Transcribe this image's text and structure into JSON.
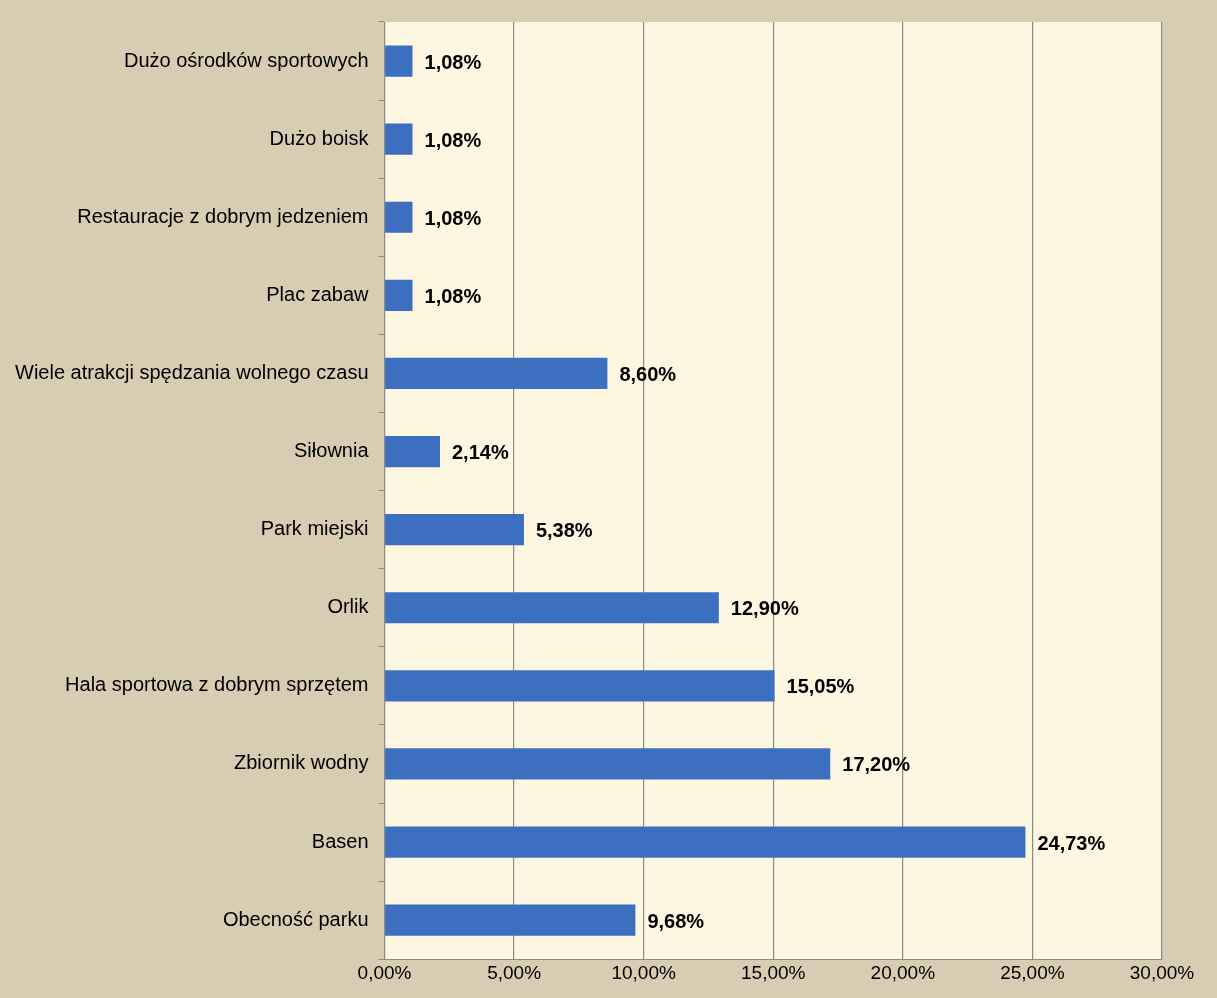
{
  "chart_data": {
    "type": "bar",
    "orientation": "horizontal",
    "categories": [
      "Dużo ośrodków sportowych",
      "Dużo boisk",
      "Restauracje z dobrym jedzeniem",
      "Plac zabaw",
      "Wiele atrakcji spędzania wolnego czasu",
      "Siłownia",
      "Park miejski",
      "Orlik",
      "Hala sportowa z dobrym sprzętem",
      "Zbiornik wodny",
      "Basen",
      "Obecność parku"
    ],
    "values": [
      1.08,
      1.08,
      1.08,
      1.08,
      8.6,
      2.14,
      5.38,
      12.9,
      15.05,
      17.2,
      24.73,
      9.68
    ],
    "value_labels": [
      "1,08%",
      "1,08%",
      "1,08%",
      "1,08%",
      "8,60%",
      "2,14%",
      "5,38%",
      "12,90%",
      "15,05%",
      "17,20%",
      "24,73%",
      "9,68%"
    ],
    "color": "#3d6fc0",
    "xlim": [
      0,
      30
    ],
    "xticks": [
      {
        "value": 0,
        "label": "0,00%"
      },
      {
        "value": 5,
        "label": "5,00%"
      },
      {
        "value": 10,
        "label": "10,00%"
      },
      {
        "value": 15,
        "label": "15,00%"
      },
      {
        "value": 20,
        "label": "20,00%"
      },
      {
        "value": 25,
        "label": "25,00%"
      },
      {
        "value": 30,
        "label": "30,00%"
      }
    ],
    "grid": "x",
    "legend": false
  }
}
